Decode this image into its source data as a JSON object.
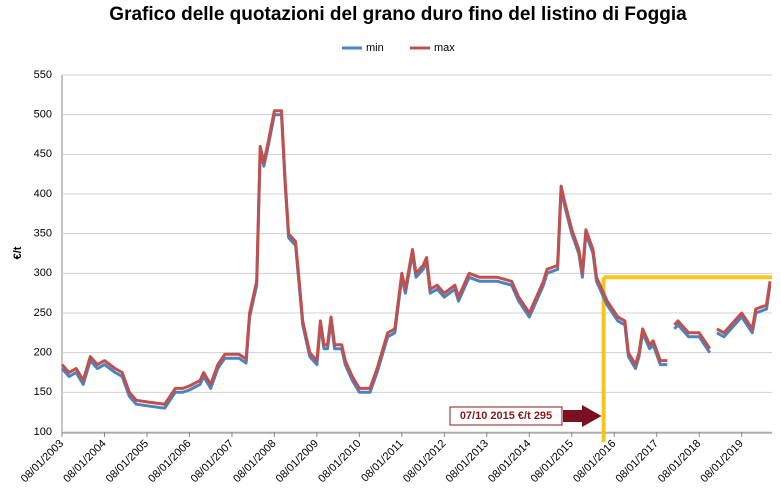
{
  "chart_data": {
    "type": "line",
    "title": "Grafico delle quotazioni del grano duro fino del listino di Foggia",
    "y_label": "€/t",
    "x": [
      "2003-01",
      "2003-03",
      "2003-05",
      "2003-07",
      "2003-09",
      "2003-11",
      "2004-01",
      "2004-04",
      "2004-06",
      "2004-08",
      "2004-10",
      "2005-01",
      "2005-06",
      "2005-09",
      "2005-11",
      "2006-01",
      "2006-04",
      "2006-05",
      "2006-07",
      "2006-09",
      "2006-11",
      "2007-01",
      "2007-03",
      "2007-05",
      "2007-06",
      "2007-08",
      "2007-09",
      "2007-10",
      "2007-11",
      "2008-01",
      "2008-03",
      "2008-04",
      "2008-05",
      "2008-07",
      "2008-08",
      "2008-09",
      "2008-11",
      "2009-01",
      "2009-02",
      "2009-03",
      "2009-04",
      "2009-05",
      "2009-06",
      "2009-08",
      "2009-09",
      "2009-11",
      "2010-01",
      "2010-04",
      "2010-06",
      "2010-09",
      "2010-11",
      "2011-01",
      "2011-02",
      "2011-04",
      "2011-05",
      "2011-07",
      "2011-08",
      "2011-09",
      "2011-11",
      "2012-01",
      "2012-04",
      "2012-05",
      "2012-08",
      "2012-11",
      "2013-04",
      "2013-08",
      "2013-10",
      "2014-01",
      "2014-03",
      "2014-05",
      "2014-06",
      "2014-09",
      "2014-10",
      "2014-11",
      "2015-01",
      "2015-03",
      "2015-04",
      "2015-05",
      "2015-07",
      "2015-08",
      "2015-11",
      "2016-02",
      "2016-04",
      "2016-05",
      "2016-07",
      "2016-08",
      "2016-09",
      "2016-11",
      "2016-12",
      "2017-02",
      "2017-04",
      "2017-05",
      "2017-06",
      "2017-07",
      "2017-10",
      "2018-01",
      "2018-04",
      "2018-05",
      "2018-06",
      "2018-08",
      "2018-11",
      "2019-01",
      "2019-04",
      "2019-05",
      "2019-08",
      "2019-09"
    ],
    "series": [
      {
        "name": "min",
        "color": "#4f81bd",
        "values": [
          180,
          170,
          175,
          160,
          190,
          180,
          185,
          175,
          170,
          145,
          135,
          133,
          130,
          150,
          150,
          153,
          160,
          170,
          155,
          180,
          193,
          193,
          193,
          187,
          245,
          285,
          455,
          435,
          455,
          500,
          500,
          415,
          345,
          335,
          285,
          235,
          195,
          185,
          235,
          205,
          205,
          240,
          205,
          205,
          185,
          165,
          150,
          150,
          175,
          220,
          225,
          295,
          275,
          325,
          295,
          305,
          315,
          275,
          280,
          270,
          280,
          265,
          295,
          290,
          290,
          285,
          265,
          245,
          265,
          285,
          300,
          305,
          405,
          385,
          350,
          325,
          295,
          350,
          325,
          290,
          260,
          240,
          235,
          195,
          180,
          195,
          225,
          205,
          210,
          185,
          185,
          null,
          230,
          235,
          220,
          220,
          200,
          null,
          225,
          220,
          235,
          245,
          225,
          250,
          255,
          285
        ]
      },
      {
        "name": "max",
        "color": "#c0504d",
        "values": [
          185,
          175,
          180,
          165,
          195,
          185,
          190,
          180,
          175,
          150,
          140,
          138,
          135,
          155,
          155,
          158,
          165,
          175,
          160,
          185,
          198,
          198,
          198,
          192,
          250,
          290,
          460,
          440,
          460,
          505,
          505,
          420,
          350,
          340,
          290,
          240,
          200,
          190,
          240,
          210,
          210,
          245,
          210,
          210,
          190,
          170,
          155,
          155,
          180,
          225,
          230,
          300,
          280,
          330,
          300,
          310,
          320,
          280,
          285,
          275,
          285,
          270,
          300,
          295,
          295,
          290,
          270,
          250,
          270,
          290,
          305,
          310,
          410,
          390,
          355,
          330,
          300,
          355,
          330,
          295,
          265,
          245,
          240,
          200,
          185,
          200,
          230,
          210,
          215,
          190,
          190,
          null,
          235,
          240,
          225,
          225,
          205,
          null,
          230,
          225,
          240,
          250,
          230,
          255,
          260,
          290
        ]
      }
    ],
    "xlim": [
      "2003-01",
      "2019-09"
    ],
    "xticks": [
      {
        "value": "2003-01",
        "label": "08/01/2003"
      },
      {
        "value": "2004-01",
        "label": "08/01/2004"
      },
      {
        "value": "2005-01",
        "label": "08/01/2005"
      },
      {
        "value": "2006-01",
        "label": "08/01/2006"
      },
      {
        "value": "2007-01",
        "label": "08/01/2007"
      },
      {
        "value": "2008-01",
        "label": "08/01/2008"
      },
      {
        "value": "2009-01",
        "label": "08/01/2009"
      },
      {
        "value": "2010-01",
        "label": "08/01/2010"
      },
      {
        "value": "2011-01",
        "label": "08/01/2011"
      },
      {
        "value": "2012-01",
        "label": "08/01/2012"
      },
      {
        "value": "2013-01",
        "label": "08/01/2013"
      },
      {
        "value": "2014-01",
        "label": "08/01/2014"
      },
      {
        "value": "2015-01",
        "label": "08/01/2015"
      },
      {
        "value": "2016-01",
        "label": "08/01/2016"
      },
      {
        "value": "2017-01",
        "label": "08/01/2017"
      },
      {
        "value": "2018-01",
        "label": "08/01/2018"
      },
      {
        "value": "2019-01",
        "label": "08/01/2019"
      }
    ],
    "ylim": [
      100,
      550
    ],
    "yticks": [
      100,
      150,
      200,
      250,
      300,
      350,
      400,
      450,
      500,
      550
    ],
    "grid": true,
    "legend": "top",
    "annotation": {
      "text": "07/10 2015 €/t 295",
      "x": "2015-10",
      "y": 295,
      "color": "#f5c518"
    }
  }
}
